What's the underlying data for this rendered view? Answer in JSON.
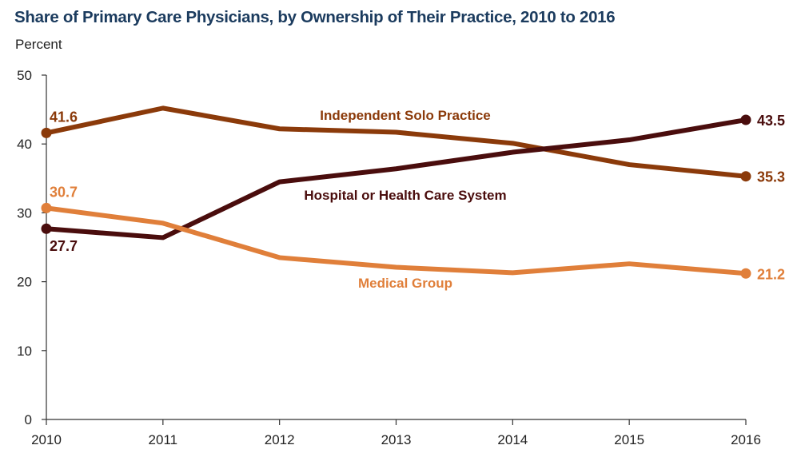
{
  "chart_data": {
    "type": "line",
    "title": "Share of Primary Care Physicians, by Ownership of Their Practice, 2010 to 2016",
    "ylabel": "Percent",
    "xlabel": "",
    "x": [
      "2010",
      "2011",
      "2012",
      "2013",
      "2014",
      "2015",
      "2016"
    ],
    "ylim": [
      0,
      50
    ],
    "yticks": [
      "0",
      "10",
      "20",
      "30",
      "40",
      "50"
    ],
    "grid": false,
    "series": [
      {
        "name": "Independent Solo Practice",
        "color": "#8b3a0a",
        "values": [
          41.6,
          45.2,
          42.2,
          41.7,
          40.1,
          37.0,
          35.3
        ],
        "start_label": "41.6",
        "end_label": "35.3"
      },
      {
        "name": "Hospital or Health Care System",
        "color": "#4a0d0d",
        "values": [
          27.7,
          26.4,
          34.5,
          36.4,
          38.8,
          40.6,
          43.5
        ],
        "start_label": "27.7",
        "end_label": "43.5"
      },
      {
        "name": "Medical Group",
        "color": "#e07f3a",
        "values": [
          30.7,
          28.5,
          23.5,
          22.1,
          21.3,
          22.6,
          21.2
        ],
        "start_label": "30.7",
        "end_label": "21.2"
      }
    ]
  }
}
